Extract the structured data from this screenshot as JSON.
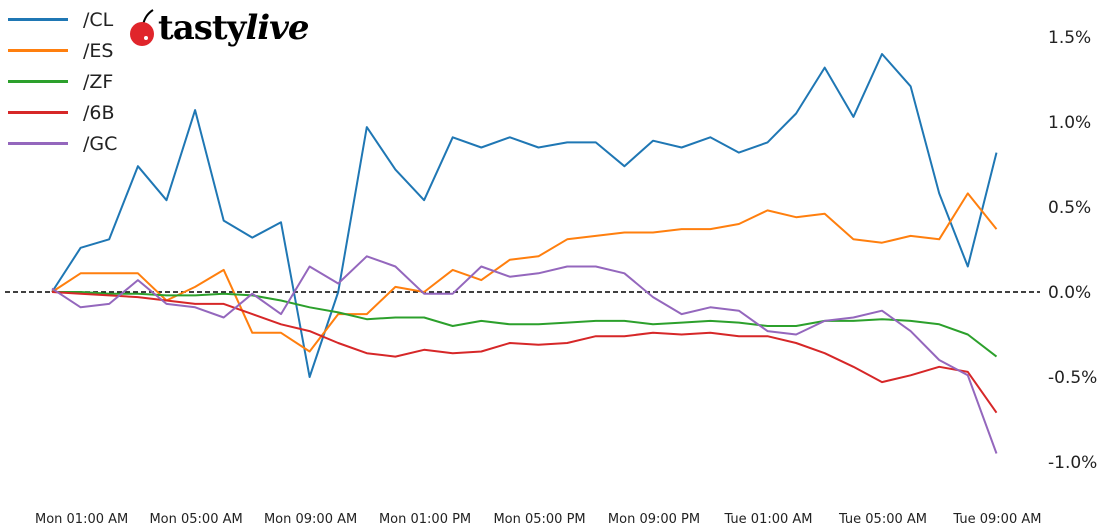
{
  "logo": {
    "text_a": "tasty",
    "text_b": "live"
  },
  "chart_data": {
    "type": "line",
    "title": "",
    "xlabel": "",
    "ylabel": "",
    "legend_position": "top-left",
    "grid": false,
    "reference_line": {
      "y": 0,
      "style": "dashed",
      "color": "#000000"
    },
    "y_axis_side": "right",
    "ylim": [
      -1.16,
      1.72
    ],
    "y_ticks": [
      -1.0,
      -0.5,
      0.0,
      0.5,
      1.0,
      1.5
    ],
    "y_tick_labels": [
      "-1.0%",
      "-0.5%",
      "0.0%",
      "0.5%",
      "1.0%",
      "1.5%"
    ],
    "x_tick_labels": [
      "Mon 01:00 AM",
      "Mon 05:00 AM",
      "Mon 09:00 AM",
      "Mon 01:00 PM",
      "Mon 05:00 PM",
      "Mon 09:00 PM",
      "Tue 01:00 AM",
      "Tue 05:00 AM",
      "Tue 09:00 AM"
    ],
    "x": [
      "Mon 12:00 AM",
      "Mon 01:00 AM",
      "Mon 02:00 AM",
      "Mon 03:00 AM",
      "Mon 04:00 AM",
      "Mon 05:00 AM",
      "Mon 06:00 AM",
      "Mon 07:00 AM",
      "Mon 08:00 AM",
      "Mon 09:00 AM",
      "Mon 10:00 AM",
      "Mon 11:00 AM",
      "Mon 12:00 PM",
      "Mon 01:00 PM",
      "Mon 02:00 PM",
      "Mon 03:00 PM",
      "Mon 04:00 PM",
      "Mon 05:00 PM",
      "Mon 06:00 PM",
      "Mon 07:00 PM",
      "Mon 08:00 PM",
      "Mon 09:00 PM",
      "Mon 10:00 PM",
      "Mon 11:00 PM",
      "Tue 12:00 AM",
      "Tue 01:00 AM",
      "Tue 02:00 AM",
      "Tue 03:00 AM",
      "Tue 04:00 AM",
      "Tue 05:00 AM",
      "Tue 06:00 AM",
      "Tue 07:00 AM",
      "Tue 08:00 AM",
      "Tue 09:00 AM"
    ],
    "series": [
      {
        "name": "/CL",
        "color": "#1f77b4",
        "values": [
          0.0,
          0.26,
          0.31,
          0.74,
          0.54,
          1.07,
          0.42,
          0.32,
          0.41,
          -0.5,
          0.0,
          0.97,
          0.72,
          0.54,
          0.91,
          0.85,
          0.91,
          0.85,
          0.88,
          0.88,
          0.74,
          0.89,
          0.85,
          0.91,
          0.82,
          0.88,
          1.05,
          1.32,
          1.03,
          1.4,
          1.21,
          0.58,
          0.15,
          0.82
        ]
      },
      {
        "name": "/ES",
        "color": "#ff7f0e",
        "values": [
          0.0,
          0.11,
          0.11,
          0.11,
          -0.05,
          0.03,
          0.13,
          -0.24,
          -0.24,
          -0.35,
          -0.13,
          -0.13,
          0.03,
          0.0,
          0.13,
          0.07,
          0.19,
          0.21,
          0.31,
          0.33,
          0.35,
          0.35,
          0.37,
          0.37,
          0.4,
          0.48,
          0.44,
          0.46,
          0.31,
          0.29,
          0.33,
          0.31,
          0.58,
          0.37
        ]
      },
      {
        "name": "/ZF",
        "color": "#2ca02c",
        "values": [
          0.0,
          0.0,
          -0.01,
          -0.01,
          -0.02,
          -0.02,
          -0.01,
          -0.02,
          -0.05,
          -0.09,
          -0.12,
          -0.16,
          -0.15,
          -0.15,
          -0.2,
          -0.17,
          -0.19,
          -0.19,
          -0.18,
          -0.17,
          -0.17,
          -0.19,
          -0.18,
          -0.17,
          -0.18,
          -0.2,
          -0.2,
          -0.17,
          -0.17,
          -0.16,
          -0.17,
          -0.19,
          -0.25,
          -0.38
        ]
      },
      {
        "name": "/6B",
        "color": "#d62728",
        "values": [
          0.0,
          -0.01,
          -0.02,
          -0.03,
          -0.05,
          -0.07,
          -0.07,
          -0.13,
          -0.19,
          -0.23,
          -0.3,
          -0.36,
          -0.38,
          -0.34,
          -0.36,
          -0.35,
          -0.3,
          -0.31,
          -0.3,
          -0.26,
          -0.26,
          -0.24,
          -0.25,
          -0.24,
          -0.26,
          -0.26,
          -0.3,
          -0.36,
          -0.44,
          -0.53,
          -0.49,
          -0.44,
          -0.47,
          -0.71
        ]
      },
      {
        "name": "/GC",
        "color": "#9467bd",
        "values": [
          0.02,
          -0.09,
          -0.07,
          0.07,
          -0.07,
          -0.09,
          -0.15,
          -0.01,
          -0.13,
          0.15,
          0.05,
          0.21,
          0.15,
          -0.01,
          -0.01,
          0.15,
          0.09,
          0.11,
          0.15,
          0.15,
          0.11,
          -0.03,
          -0.13,
          -0.09,
          -0.11,
          -0.23,
          -0.25,
          -0.17,
          -0.15,
          -0.11,
          -0.23,
          -0.4,
          -0.49,
          -0.95
        ]
      }
    ]
  }
}
